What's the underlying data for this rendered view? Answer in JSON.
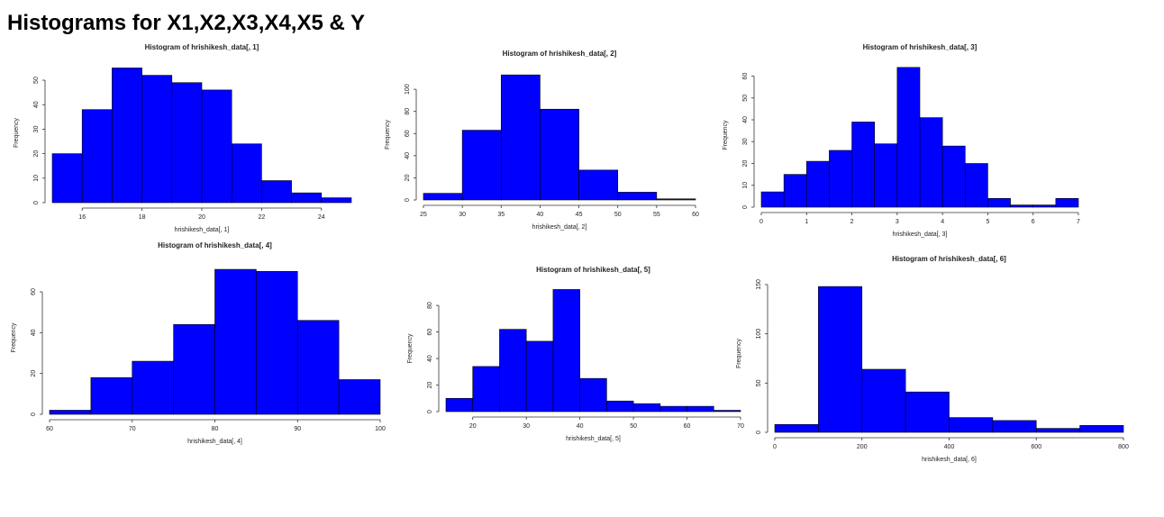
{
  "title": "Histograms for X1,X2,X3,X4,X5 & Y",
  "chart_data": [
    {
      "type": "histogram",
      "title": "Histogram of hrishikesh_data[, 1]",
      "xlabel": "hrishikesh_data[, 1]",
      "ylabel": "Frequency",
      "color": "#0000ff",
      "bins": [
        15,
        16,
        17,
        18,
        19,
        20,
        21,
        22,
        23,
        24,
        25
      ],
      "counts": [
        20,
        38,
        55,
        52,
        49,
        46,
        24,
        9,
        4,
        2
      ],
      "xlim": [
        15,
        25
      ],
      "ylim": [
        0,
        57
      ],
      "xticks": [
        16,
        18,
        20,
        22,
        24
      ],
      "yticks": [
        0,
        10,
        20,
        30,
        40,
        50
      ]
    },
    {
      "type": "histogram",
      "title": "Histogram of hrishikesh_data[, 2]",
      "xlabel": "hrishikesh_data[, 2]",
      "ylabel": "Frequency",
      "color": "#0000ff",
      "bins": [
        25,
        30,
        35,
        40,
        45,
        50,
        55,
        60
      ],
      "counts": [
        6,
        63,
        113,
        82,
        27,
        7,
        1
      ],
      "xlim": [
        25,
        60
      ],
      "ylim": [
        0,
        118
      ],
      "xticks": [
        25,
        30,
        35,
        40,
        45,
        50,
        55,
        60
      ],
      "yticks": [
        0,
        20,
        40,
        60,
        80,
        100
      ]
    },
    {
      "type": "histogram",
      "title": "Histogram of hrishikesh_data[, 3]",
      "xlabel": "hrishikesh_data[, 3]",
      "ylabel": "Frequency",
      "color": "#0000ff",
      "bins": [
        0,
        0.5,
        1,
        1.5,
        2,
        2.5,
        3,
        3.5,
        4,
        4.5,
        5,
        5.5,
        6,
        6.5,
        7
      ],
      "counts": [
        7,
        15,
        21,
        26,
        39,
        29,
        64,
        41,
        28,
        20,
        4,
        1,
        1,
        4
      ],
      "xlim": [
        0,
        7
      ],
      "ylim": [
        0,
        66
      ],
      "xticks": [
        0,
        1,
        2,
        3,
        4,
        5,
        6,
        7
      ],
      "yticks": [
        0,
        10,
        20,
        30,
        40,
        50,
        60
      ]
    },
    {
      "type": "histogram",
      "title": "Histogram of hrishikesh_data[, 4]",
      "xlabel": "hrishikesh_data[, 4]",
      "ylabel": "Frequency",
      "color": "#0000ff",
      "bins": [
        60,
        65,
        70,
        75,
        80,
        85,
        90,
        95,
        100
      ],
      "counts": [
        2,
        18,
        26,
        44,
        71,
        70,
        46,
        17
      ],
      "xlim": [
        60,
        100
      ],
      "ylim": [
        0,
        75
      ],
      "xticks": [
        60,
        70,
        80,
        90,
        100
      ],
      "yticks": [
        0,
        20,
        40,
        60
      ]
    },
    {
      "type": "histogram",
      "title": "Histogram of hrishikesh_data[, 5]",
      "xlabel": "hrishikesh_data[, 5]",
      "ylabel": "Frequency",
      "color": "#0000ff",
      "bins": [
        15,
        20,
        25,
        30,
        35,
        40,
        45,
        50,
        55,
        60,
        65,
        70
      ],
      "counts": [
        10,
        34,
        62,
        53,
        92,
        25,
        8,
        6,
        4,
        4,
        1
      ],
      "xlim": [
        15,
        70
      ],
      "ylim": [
        0,
        95
      ],
      "xticks": [
        20,
        30,
        40,
        50,
        60,
        70
      ],
      "yticks": [
        0,
        20,
        40,
        60,
        80
      ]
    },
    {
      "type": "histogram",
      "title": "Histogram of hrishikesh_data[, 6]",
      "xlabel": "hrishikesh_data[, 6]",
      "ylabel": "Frequency",
      "color": "#0000ff",
      "bins": [
        0,
        100,
        200,
        300,
        400,
        500,
        600,
        700,
        800
      ],
      "counts": [
        8,
        148,
        64,
        41,
        15,
        12,
        4,
        7
      ],
      "xlim": [
        0,
        800
      ],
      "ylim": [
        0,
        160
      ],
      "xticks": [
        0,
        200,
        400,
        600,
        800
      ],
      "yticks": [
        0,
        50,
        100,
        150
      ]
    }
  ]
}
